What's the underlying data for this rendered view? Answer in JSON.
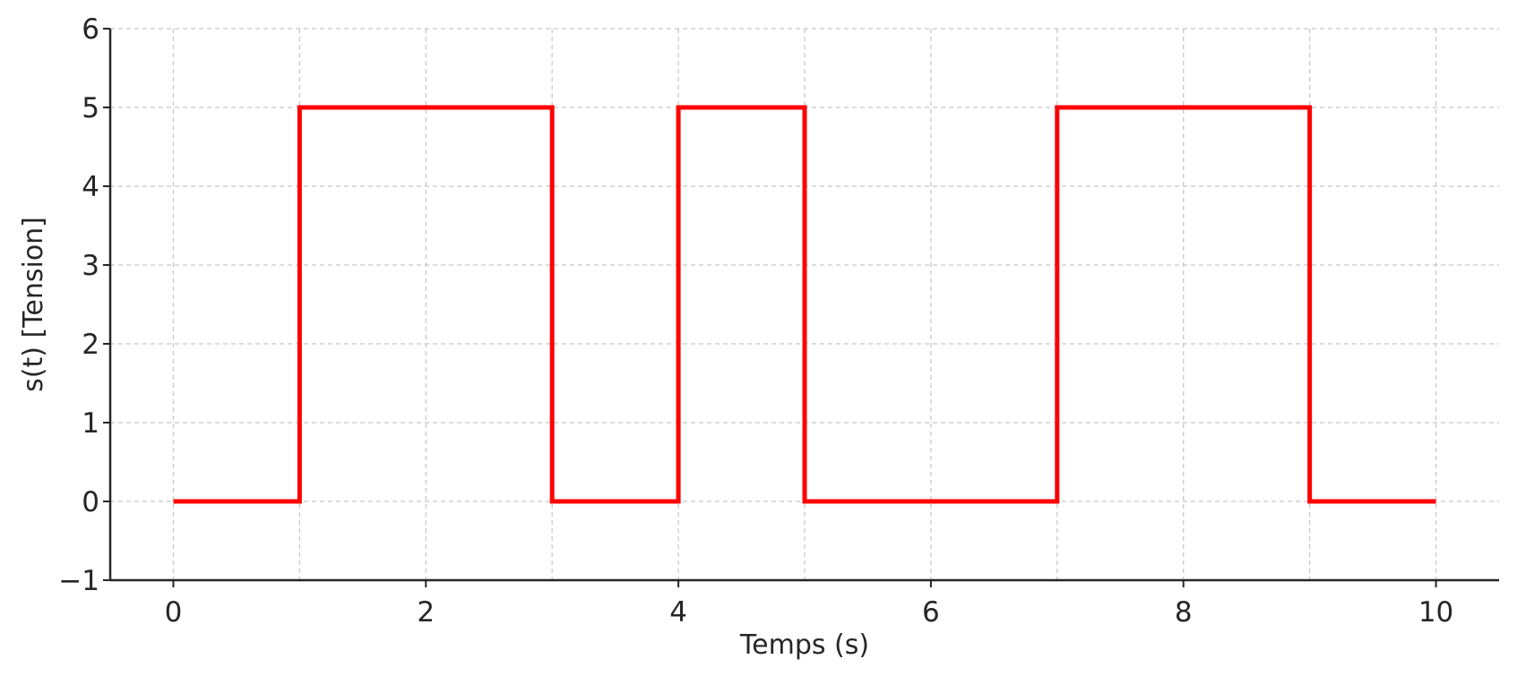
{
  "chart_data": {
    "type": "line",
    "step": "post",
    "title": "",
    "xlabel": "Temps (s)",
    "ylabel": "s(t) [Tension]",
    "xlim": [
      -0.5,
      10.5
    ],
    "ylim": [
      -1,
      6
    ],
    "x_ticks": [
      0,
      2,
      4,
      6,
      8,
      10
    ],
    "y_ticks": [
      -1,
      0,
      1,
      2,
      3,
      4,
      5,
      6
    ],
    "x_tick_labels": [
      "0",
      "2",
      "4",
      "6",
      "8",
      "10"
    ],
    "y_tick_labels": [
      "−1",
      "0",
      "1",
      "2",
      "3",
      "4",
      "5",
      "6"
    ],
    "grid": true,
    "grid_x": [
      0,
      2,
      4,
      6,
      8,
      10,
      1,
      3,
      5,
      7,
      9
    ],
    "grid_y": [
      0,
      1,
      2,
      3,
      4,
      5,
      6
    ],
    "series": [
      {
        "color": "#ff0000",
        "x": [
          0,
          1,
          2,
          3,
          4,
          5,
          6,
          7,
          8,
          9,
          10
        ],
        "y": [
          0,
          5,
          5,
          0,
          5,
          0,
          0,
          5,
          5,
          0,
          0
        ]
      }
    ],
    "colors": {
      "line": "#ff0000",
      "axis": "#262626",
      "grid": "#c8c8c8"
    }
  }
}
